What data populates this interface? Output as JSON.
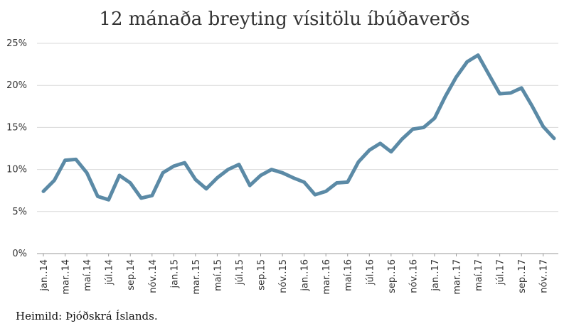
{
  "chart_data": {
    "type": "line",
    "title": "12 mánaða breyting vísitölu íbúðaverðs",
    "source": "Heimild: Þjóðskrá Íslands.",
    "xlabel": "",
    "ylabel": "",
    "ylim": [
      0,
      25
    ],
    "y_ticks": [
      "0%",
      "5%",
      "10%",
      "15%",
      "20%",
      "25%"
    ],
    "y_tick_values": [
      0,
      5,
      10,
      15,
      20,
      25
    ],
    "grid": true,
    "line_color": "#5b8aa6",
    "x_tick_labels": [
      "jan..14",
      "mar..14",
      "maí.14",
      "júl.14",
      "sep.14",
      "nóv..14",
      "jan.15",
      "mar..15",
      "maí.15",
      "júl.15",
      "sep.15",
      "nóv..15",
      "jan..16",
      "mar..16",
      "maí.16",
      "júl.16",
      "sep..16",
      "nóv..16",
      "jan..17",
      "mar..17",
      "maí.17",
      "júl.17",
      "sep..17",
      "nóv..17"
    ],
    "x": [
      "jan 14",
      "feb 14",
      "mar 14",
      "apr 14",
      "maí 14",
      "jún 14",
      "júl 14",
      "ágú 14",
      "sep 14",
      "okt 14",
      "nóv 14",
      "des 14",
      "jan 15",
      "feb 15",
      "mar 15",
      "apr 15",
      "maí 15",
      "jún 15",
      "júl 15",
      "ágú 15",
      "sep 15",
      "okt 15",
      "nóv 15",
      "des 15",
      "jan 16",
      "feb 16",
      "mar 16",
      "apr 16",
      "maí 16",
      "jún 16",
      "júl 16",
      "ágú 16",
      "sep 16",
      "okt 16",
      "nóv 16",
      "des 16",
      "jan 17",
      "feb 17",
      "mar 17",
      "apr 17",
      "maí 17",
      "jún 17",
      "júl 17",
      "ágú 17",
      "sep 17",
      "okt 17",
      "nóv 17",
      "des 17"
    ],
    "values": [
      7.4,
      8.7,
      11.1,
      11.2,
      9.6,
      6.8,
      6.4,
      9.3,
      8.4,
      6.6,
      6.9,
      9.6,
      10.4,
      10.8,
      8.8,
      7.7,
      9.0,
      10.0,
      10.6,
      8.1,
      9.3,
      10.0,
      9.6,
      9.0,
      8.5,
      7.0,
      7.4,
      8.4,
      8.5,
      10.9,
      12.3,
      13.1,
      12.1,
      13.6,
      14.8,
      15.0,
      16.1,
      18.7,
      21.0,
      22.8,
      23.6,
      21.3,
      19.0,
      19.1,
      19.7,
      17.5,
      15.1,
      13.7
    ]
  }
}
